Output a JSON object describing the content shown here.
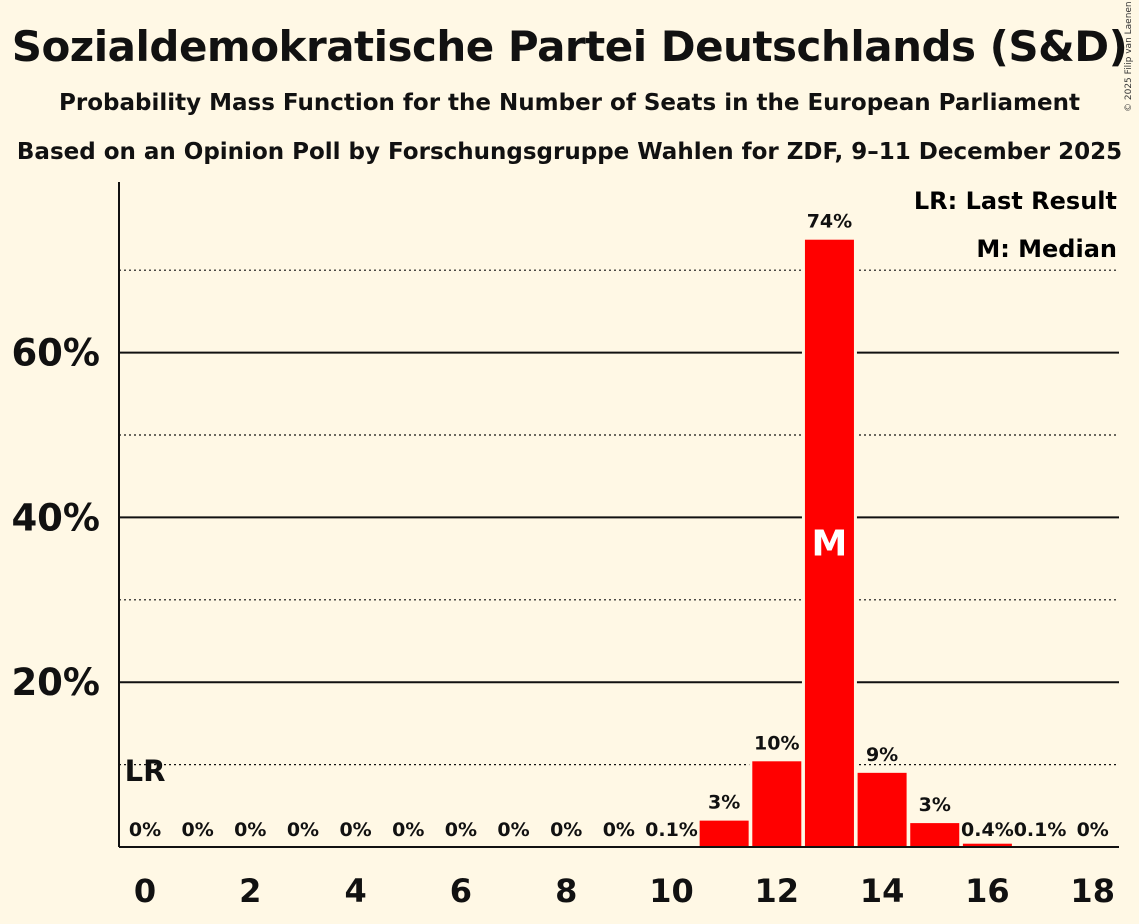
{
  "title": "Sozialdemokratische Partei Deutschlands (S&D)",
  "subtitle": "Probability Mass Function for the Number of Seats in the European Parliament",
  "subtitle2": "Based on an Opinion Poll by Forschungsgruppe Wahlen for ZDF, 9–11 December 2025",
  "copyright": "© 2025 Filip van Laenen",
  "legend": {
    "last_result": "LR: Last Result",
    "median": "M: Median"
  },
  "markers": {
    "last_result_label": "LR",
    "last_result_seats": 0,
    "median_label": "M",
    "median_seats": 13
  },
  "colors": {
    "bar": "#ff0000",
    "background": "#fff8e5",
    "text": "#111111"
  },
  "chart_data": {
    "type": "bar",
    "title": "Sozialdemokratische Partei Deutschlands (S&D)",
    "xlabel": "",
    "ylabel": "",
    "categories": [
      0,
      1,
      2,
      3,
      4,
      5,
      6,
      7,
      8,
      9,
      10,
      11,
      12,
      13,
      14,
      15,
      16,
      17,
      18
    ],
    "values": [
      0,
      0,
      0,
      0,
      0,
      0,
      0,
      0,
      0,
      0,
      0.1,
      3.2,
      10.4,
      73.7,
      9.0,
      2.9,
      0.4,
      0.1,
      0
    ],
    "data_labels": [
      "0%",
      "0%",
      "0%",
      "0%",
      "0%",
      "0%",
      "0%",
      "0%",
      "0%",
      "0%",
      "0.1%",
      "3%",
      "10%",
      "74%",
      "9%",
      "3%",
      "0.4%",
      "0.1%",
      "0%"
    ],
    "x_tick_labels": [
      "0",
      "2",
      "4",
      "6",
      "8",
      "10",
      "12",
      "14",
      "16",
      "18"
    ],
    "x_ticks": [
      0,
      2,
      4,
      6,
      8,
      10,
      12,
      14,
      16,
      18
    ],
    "y_tick_labels": [
      "20%",
      "40%",
      "60%"
    ],
    "y_ticks": [
      20,
      40,
      60
    ],
    "y_minor_ticks": [
      10,
      30,
      50,
      70
    ],
    "ylim": [
      0,
      81
    ],
    "grid": true
  }
}
